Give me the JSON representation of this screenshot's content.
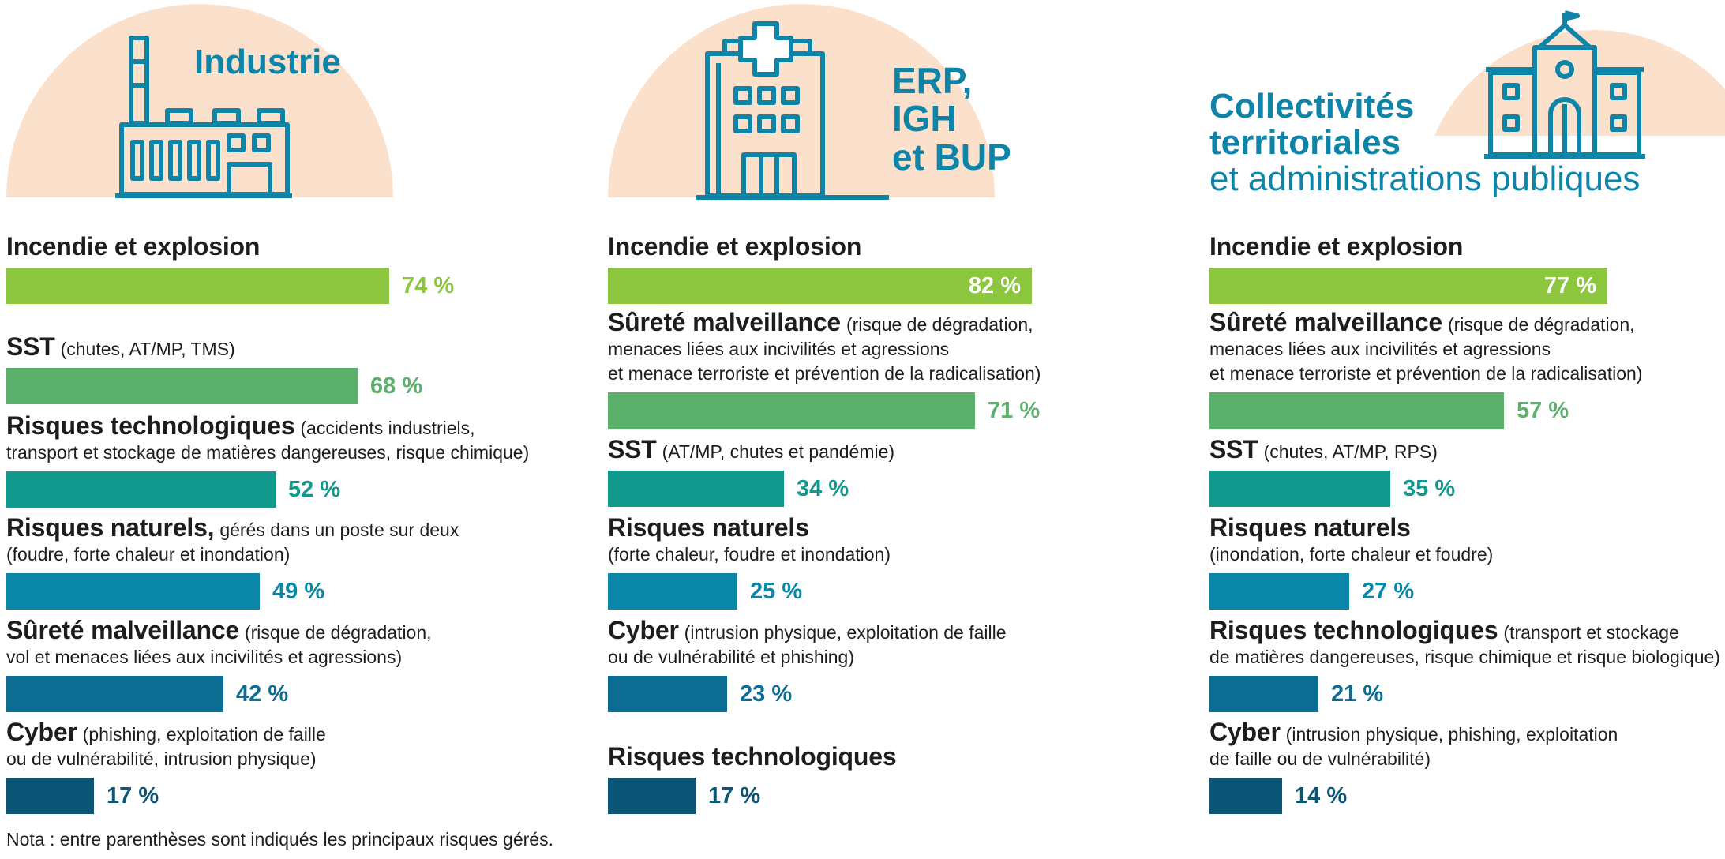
{
  "colors": {
    "peach": "#fbe1cc",
    "icon": "#0e84a9",
    "c1": "#8cc63f",
    "c2": "#5bb06b",
    "c3": "#12998e",
    "c4": "#0a86a8",
    "c5": "#0d6c92",
    "c6": "#0b5577"
  },
  "note": "Nota : entre parenthèses sont indiqués les principaux risques gérés.",
  "chart_data": [
    {
      "type": "bar",
      "orientation": "horizontal",
      "title": "Industrie",
      "title_lines": [
        "Industrie"
      ],
      "icon": "factory-icon",
      "categories": [
        "Incendie et explosion",
        "SST",
        "Risques technologiques",
        "Risques naturels,",
        "Sûreté malveillance",
        "Cyber"
      ],
      "details": [
        [
          "",
          ""
        ],
        [
          "(chutes, AT/MP, TMS)",
          ""
        ],
        [
          "(accidents industriels,",
          "transport et stockage de matières dangereuses, risque chimique)"
        ],
        [
          "gérés dans un poste sur deux",
          "(foudre, forte chaleur et inondation)"
        ],
        [
          "(risque de dégradation,",
          "vol et menaces liées aux incivilités et agressions)"
        ],
        [
          "(phishing, exploitation de faille",
          "ou de vulnérabilité, intrusion physique)"
        ]
      ],
      "values": [
        74,
        68,
        52,
        49,
        42,
        17
      ],
      "labels": [
        "74 %",
        "68 %",
        "52 %",
        "49 %",
        "42 %",
        "17 %"
      ],
      "unit": "%"
    },
    {
      "type": "bar",
      "orientation": "horizontal",
      "title": "ERP, IGH et BUP",
      "title_lines": [
        "ERP,",
        "IGH",
        "et BUP"
      ],
      "icon": "hospital-icon",
      "categories": [
        "Incendie et explosion",
        "Sûreté malveillance",
        "SST",
        "Risques naturels",
        "Cyber",
        "Risques technologiques"
      ],
      "details": [
        [
          "",
          ""
        ],
        [
          "(risque de dégradation,",
          "menaces liées aux incivilités et agressions",
          "et menace terroriste et prévention de la radicalisation)"
        ],
        [
          "(AT/MP, chutes et pandémie)",
          ""
        ],
        [
          "",
          "(forte chaleur, foudre et inondation)"
        ],
        [
          "(intrusion physique, exploitation de faille",
          "ou de vulnérabilité et phishing)"
        ],
        [
          "",
          ""
        ]
      ],
      "values": [
        82,
        71,
        34,
        25,
        23,
        17
      ],
      "labels": [
        "82 %",
        "71 %",
        "34 %",
        "25 %",
        "23 %",
        "17 %"
      ],
      "unit": "%"
    },
    {
      "type": "bar",
      "orientation": "horizontal",
      "title": "Collectivités territoriales et administrations publiques",
      "title_lines": [
        "Collectivités",
        "territoriales",
        "et administrations publiques"
      ],
      "icon": "town-hall-icon",
      "categories": [
        "Incendie et explosion",
        "Sûreté malveillance",
        "SST",
        "Risques naturels",
        "Risques technologiques",
        "Cyber"
      ],
      "details": [
        [
          "",
          ""
        ],
        [
          "(risque de dégradation,",
          "menaces liées aux incivilités et agressions",
          "et menace terroriste et prévention de la radicalisation)"
        ],
        [
          "(chutes, AT/MP, RPS)",
          ""
        ],
        [
          "",
          "(inondation, forte chaleur et foudre)"
        ],
        [
          "(transport et stockage",
          "de matières dangereuses, risque chimique et risque biologique)"
        ],
        [
          "(intrusion physique, phishing, exploitation",
          "de faille ou de vulnérabilité)"
        ]
      ],
      "values": [
        77,
        57,
        35,
        27,
        21,
        14
      ],
      "labels": [
        "77 %",
        "57 %",
        "35 %",
        "27 %",
        "21 %",
        "14 %"
      ],
      "unit": "%"
    }
  ]
}
